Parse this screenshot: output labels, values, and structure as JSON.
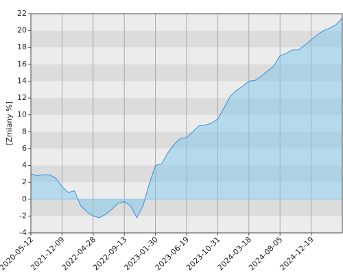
{
  "chart_data": {
    "type": "area",
    "y_label": "[Zmiany %]",
    "categories": [
      "2020-05-12",
      null,
      null,
      null,
      null,
      "2021-12-09",
      null,
      null,
      null,
      null,
      "2022-04-28",
      null,
      null,
      null,
      null,
      "2022-09-13",
      null,
      null,
      null,
      null,
      "2023-01-30",
      null,
      null,
      null,
      null,
      "2023-06-19",
      null,
      null,
      null,
      null,
      "2023-10-31",
      null,
      null,
      null,
      null,
      "2024-03-18",
      null,
      null,
      null,
      null,
      "2024-08-05",
      null,
      null,
      null,
      null,
      "2024-12-19",
      null,
      null,
      null,
      null,
      null
    ],
    "values": [
      3.0,
      2.8,
      2.9,
      2.9,
      2.5,
      1.5,
      0.8,
      1.0,
      -0.8,
      -1.5,
      -2.0,
      -2.2,
      -1.8,
      -1.2,
      -0.5,
      -0.3,
      -0.8,
      -2.2,
      -0.8,
      1.8,
      4.0,
      4.2,
      5.5,
      6.5,
      7.2,
      7.3,
      8.0,
      8.7,
      8.8,
      9.0,
      9.5,
      10.8,
      12.2,
      12.9,
      13.4,
      14.0,
      14.1,
      14.6,
      15.2,
      15.8,
      17.0,
      17.3,
      17.7,
      17.7,
      18.3,
      18.9,
      19.5,
      20.0,
      20.3,
      20.7,
      21.5
    ],
    "color": "#3a8fdc",
    "ylim": [
      -4,
      22
    ],
    "yticks": [
      -4,
      -2,
      0,
      2,
      4,
      6,
      8,
      10,
      12,
      14,
      16,
      18,
      20,
      22
    ],
    "grid": true
  }
}
